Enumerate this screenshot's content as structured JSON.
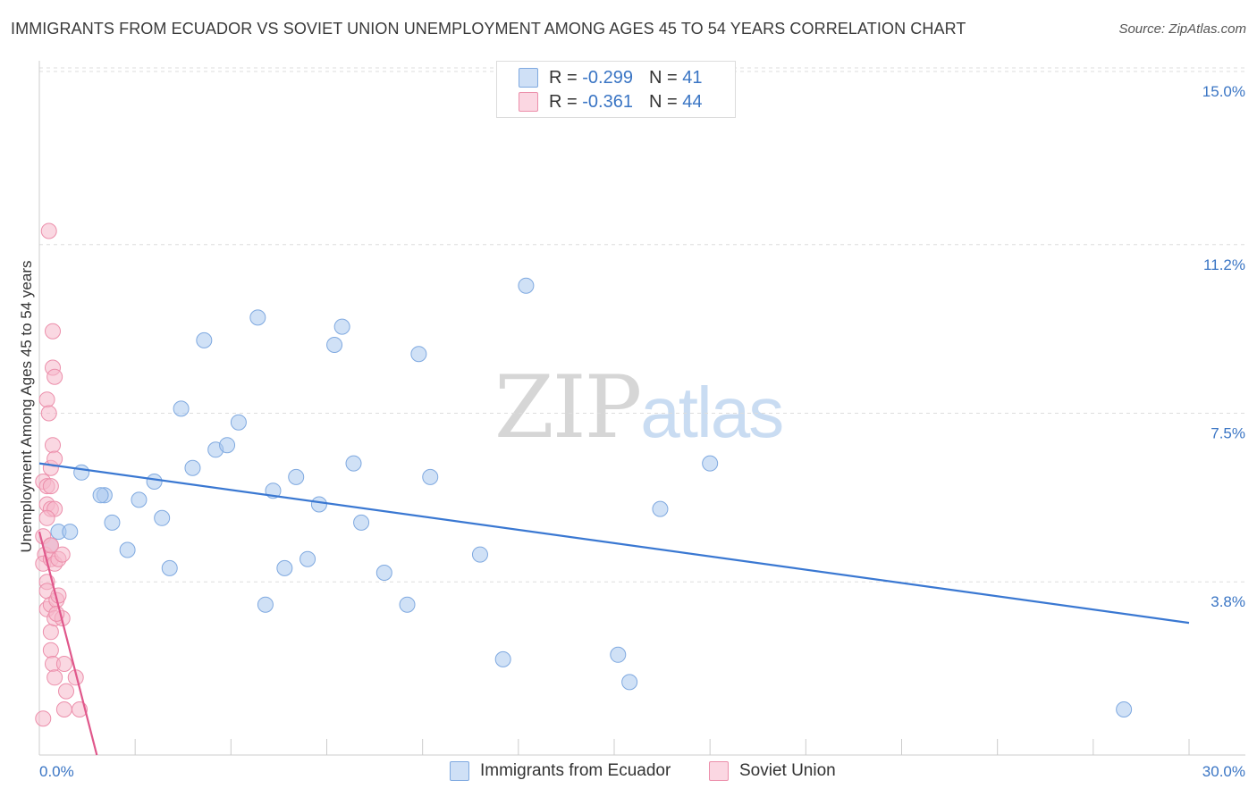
{
  "title": "IMMIGRANTS FROM ECUADOR VS SOVIET UNION UNEMPLOYMENT AMONG AGES 45 TO 54 YEARS CORRELATION CHART",
  "source": "Source: ZipAtlas.com",
  "watermark": {
    "zip": "ZIP",
    "atlas": "atlas"
  },
  "legend": {
    "rows": [
      {
        "r_label": "R =",
        "r_value": "-0.299",
        "n_label": "N =",
        "n_value": "41",
        "color": "#a9c8ef"
      },
      {
        "r_label": "R =",
        "r_value": "-0.361",
        "n_label": "N =",
        "n_value": "44",
        "color": "#f6b8ca"
      }
    ]
  },
  "chart_data": {
    "type": "scatter",
    "title": "IMMIGRANTS FROM ECUADOR VS SOVIET UNION UNEMPLOYMENT AMONG AGES 45 TO 54 YEARS CORRELATION CHART",
    "xlabel": "",
    "ylabel": "Unemployment Among Ages 45 to 54 years",
    "xlim": [
      0,
      30
    ],
    "ylim": [
      0,
      15
    ],
    "x_tick_labels": [
      "0.0%",
      "30.0%"
    ],
    "y_ticks": [
      3.8,
      7.5,
      11.2,
      15.0
    ],
    "y_tick_labels": [
      "3.8%",
      "7.5%",
      "11.2%",
      "15.0%"
    ],
    "grid": true,
    "legend_position": "bottom",
    "series": [
      {
        "name": "Immigrants from Ecuador",
        "color": "#a9c8ef",
        "stroke": "#7fa9e0",
        "line_color": "#3a78d2",
        "trend": [
          [
            0,
            6.4
          ],
          [
            30,
            2.9
          ]
        ],
        "points": [
          [
            0.3,
            4.6
          ],
          [
            0.5,
            4.9
          ],
          [
            0.8,
            4.9
          ],
          [
            1.1,
            6.2
          ],
          [
            1.7,
            5.7
          ],
          [
            1.6,
            5.7
          ],
          [
            1.9,
            5.1
          ],
          [
            2.3,
            4.5
          ],
          [
            2.6,
            5.6
          ],
          [
            3.0,
            6.0
          ],
          [
            3.2,
            5.2
          ],
          [
            3.4,
            4.1
          ],
          [
            3.7,
            7.6
          ],
          [
            4.0,
            6.3
          ],
          [
            4.3,
            9.1
          ],
          [
            4.6,
            6.7
          ],
          [
            4.9,
            6.8
          ],
          [
            5.2,
            7.3
          ],
          [
            5.7,
            9.6
          ],
          [
            5.9,
            3.3
          ],
          [
            6.1,
            5.8
          ],
          [
            6.4,
            4.1
          ],
          [
            6.7,
            6.1
          ],
          [
            7.0,
            4.3
          ],
          [
            7.3,
            5.5
          ],
          [
            7.7,
            9.0
          ],
          [
            7.9,
            9.4
          ],
          [
            8.2,
            6.4
          ],
          [
            8.4,
            5.1
          ],
          [
            9.0,
            4.0
          ],
          [
            9.6,
            3.3
          ],
          [
            9.9,
            8.8
          ],
          [
            10.2,
            6.1
          ],
          [
            11.5,
            4.4
          ],
          [
            12.1,
            2.1
          ],
          [
            12.7,
            10.3
          ],
          [
            15.1,
            2.2
          ],
          [
            15.4,
            1.6
          ],
          [
            16.2,
            5.4
          ],
          [
            17.5,
            6.4
          ],
          [
            28.3,
            1.0
          ]
        ]
      },
      {
        "name": "Soviet Union",
        "color": "#f6b8ca",
        "stroke": "#ec8fab",
        "line_color": "#e0578b",
        "trend": [
          [
            0,
            4.9
          ],
          [
            1.5,
            0.0
          ]
        ],
        "points": [
          [
            0.1,
            4.8
          ],
          [
            0.15,
            4.4
          ],
          [
            0.1,
            4.2
          ],
          [
            0.2,
            5.5
          ],
          [
            0.1,
            6.0
          ],
          [
            0.2,
            3.8
          ],
          [
            0.2,
            3.2
          ],
          [
            0.3,
            2.7
          ],
          [
            0.1,
            0.8
          ],
          [
            0.2,
            3.6
          ],
          [
            0.3,
            4.6
          ],
          [
            0.2,
            5.9
          ],
          [
            0.3,
            6.3
          ],
          [
            0.2,
            7.8
          ],
          [
            0.25,
            7.5
          ],
          [
            0.25,
            11.5
          ],
          [
            0.35,
            9.3
          ],
          [
            0.35,
            8.5
          ],
          [
            0.4,
            8.3
          ],
          [
            0.35,
            6.8
          ],
          [
            0.4,
            6.5
          ],
          [
            0.3,
            5.9
          ],
          [
            0.3,
            5.4
          ],
          [
            0.4,
            5.4
          ],
          [
            0.3,
            4.3
          ],
          [
            0.4,
            4.2
          ],
          [
            0.5,
            4.3
          ],
          [
            0.6,
            4.4
          ],
          [
            0.3,
            3.3
          ],
          [
            0.4,
            3.0
          ],
          [
            0.45,
            3.4
          ],
          [
            0.5,
            3.5
          ],
          [
            0.6,
            3.0
          ],
          [
            0.3,
            2.3
          ],
          [
            0.35,
            2.0
          ],
          [
            0.4,
            1.7
          ],
          [
            0.65,
            2.0
          ],
          [
            0.7,
            1.4
          ],
          [
            0.65,
            1.0
          ],
          [
            0.95,
            1.7
          ],
          [
            1.05,
            1.0
          ],
          [
            0.2,
            5.2
          ],
          [
            0.3,
            4.6
          ],
          [
            0.45,
            3.1
          ]
        ]
      }
    ]
  }
}
